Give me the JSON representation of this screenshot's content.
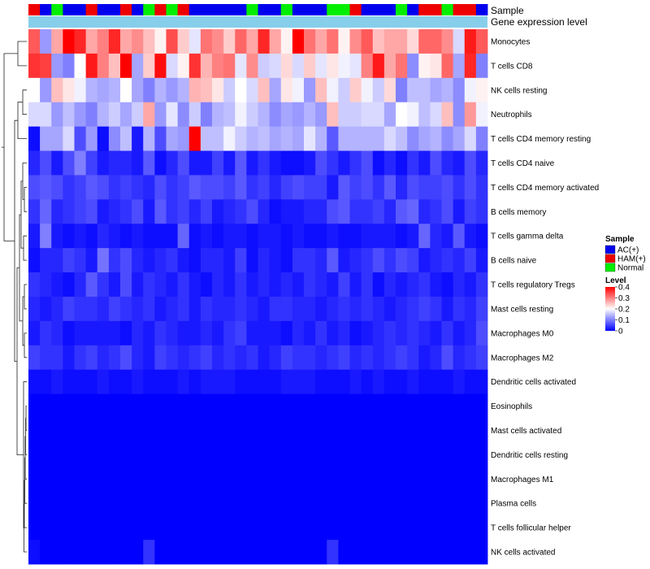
{
  "chart_data": {
    "type": "heatmap",
    "title": "",
    "xlabel": "",
    "ylabel": "",
    "annotation_tracks": [
      "Sample",
      "Gene expression level"
    ],
    "samples": [
      "HAM(+)",
      "AC(+)",
      "Normal",
      "AC(+)",
      "AC(+)",
      "HAM(+)",
      "AC(+)",
      "AC(+)",
      "HAM(+)",
      "AC(+)",
      "Normal",
      "HAM(+)",
      "Normal",
      "HAM(+)",
      "AC(+)",
      "AC(+)",
      "AC(+)",
      "AC(+)",
      "AC(+)",
      "Normal",
      "AC(+)",
      "AC(+)",
      "Normal",
      "AC(+)",
      "AC(+)",
      "AC(+)",
      "Normal",
      "Normal",
      "HAM(+)",
      "AC(+)",
      "AC(+)",
      "AC(+)",
      "Normal",
      "AC(+)",
      "HAM(+)",
      "HAM(+)",
      "Normal",
      "HAM(+)",
      "HAM(+)",
      "AC(+)"
    ],
    "rows": [
      "Monocytes",
      "T cells CD8",
      "NK cells resting",
      "Neutrophils",
      "T cells CD4 memory resting",
      "T cells CD4 naive",
      "T cells CD4 memory activated",
      "B cells memory",
      "T cells gamma delta",
      "B cells naive",
      "T cells regulatory  Tregs",
      "Mast cells resting",
      "Macrophages M0",
      "Macrophages M2",
      "Dendritic cells activated",
      "Eosinophils",
      "Mast cells activated",
      "Dendritic cells resting",
      "Macrophages M1",
      "Plasma cells",
      "T cells follicular helper",
      "NK cells activated"
    ],
    "values": [
      [
        0.33,
        0.12,
        0.27,
        0.4,
        0.37,
        0.27,
        0.3,
        0.37,
        0.27,
        0.29,
        0.25,
        0.21,
        0.34,
        0.24,
        0.18,
        0.31,
        0.29,
        0.24,
        0.32,
        0.27,
        0.37,
        0.27,
        0.21,
        0.4,
        0.31,
        0.27,
        0.31,
        0.21,
        0.29,
        0.33,
        0.25,
        0.27,
        0.27,
        0.23,
        0.32,
        0.32,
        0.29,
        0.17,
        0.38,
        0.33
      ],
      [
        0.36,
        0.35,
        0.12,
        0.1,
        0.2,
        0.38,
        0.3,
        0.25,
        0.4,
        0.13,
        0.24,
        0.39,
        0.17,
        0.21,
        0.36,
        0.26,
        0.3,
        0.31,
        0.18,
        0.29,
        0.16,
        0.17,
        0.23,
        0.17,
        0.24,
        0.18,
        0.22,
        0.19,
        0.18,
        0.3,
        0.38,
        0.27,
        0.31,
        0.11,
        0.21,
        0.22,
        0.32,
        0.13,
        0.37,
        0.1
      ],
      [
        0.2,
        0.12,
        0.25,
        0.22,
        0.19,
        0.14,
        0.13,
        0.14,
        0.2,
        0.13,
        0.1,
        0.14,
        0.12,
        0.14,
        0.26,
        0.25,
        0.22,
        0.16,
        0.2,
        0.17,
        0.25,
        0.13,
        0.22,
        0.19,
        0.12,
        0.25,
        0.19,
        0.16,
        0.24,
        0.19,
        0.16,
        0.23,
        0.1,
        0.15,
        0.15,
        0.13,
        0.14,
        0.11,
        0.19,
        0.21
      ],
      [
        0.17,
        0.17,
        0.12,
        0.15,
        0.12,
        0.1,
        0.14,
        0.16,
        0.13,
        0.16,
        0.27,
        0.12,
        0.18,
        0.11,
        0.16,
        0.1,
        0.14,
        0.15,
        0.19,
        0.16,
        0.14,
        0.11,
        0.13,
        0.12,
        0.14,
        0.12,
        0.25,
        0.16,
        0.16,
        0.17,
        0.17,
        0.13,
        0.2,
        0.19,
        0.15,
        0.17,
        0.25,
        0.11,
        0.28,
        0.19
      ],
      [
        0.01,
        0.13,
        0.13,
        0.17,
        0.06,
        0.12,
        0.01,
        0.11,
        0.15,
        0.02,
        0.14,
        0.06,
        0.13,
        0.12,
        0.4,
        0.15,
        0.15,
        0.19,
        0.16,
        0.14,
        0.15,
        0.13,
        0.14,
        0.13,
        0.18,
        0.14,
        0.07,
        0.14,
        0.14,
        0.14,
        0.14,
        0.17,
        0.15,
        0.11,
        0.13,
        0.14,
        0.11,
        0.13,
        0.17,
        0.1
      ],
      [
        0.03,
        0.06,
        0.02,
        0.06,
        0.1,
        0.05,
        0.02,
        0.03,
        0.03,
        0.02,
        0.07,
        0.01,
        0.03,
        0.06,
        0.02,
        0.02,
        0.05,
        0.02,
        0.07,
        0.02,
        0.04,
        0.02,
        0.01,
        0.01,
        0.02,
        0.06,
        0.04,
        0.02,
        0.04,
        0.06,
        0.01,
        0.03,
        0.01,
        0.04,
        0.02,
        0.06,
        0.03,
        0.02,
        0.06,
        0.03
      ],
      [
        0.06,
        0.07,
        0.06,
        0.04,
        0.05,
        0.07,
        0.06,
        0.04,
        0.05,
        0.04,
        0.03,
        0.06,
        0.04,
        0.05,
        0.07,
        0.06,
        0.06,
        0.05,
        0.07,
        0.04,
        0.05,
        0.03,
        0.05,
        0.06,
        0.05,
        0.05,
        0.02,
        0.07,
        0.05,
        0.06,
        0.04,
        0.07,
        0.03,
        0.06,
        0.05,
        0.05,
        0.06,
        0.04,
        0.06,
        0.04
      ],
      [
        0.04,
        0.08,
        0.03,
        0.04,
        0.05,
        0.06,
        0.02,
        0.03,
        0.04,
        0.06,
        0.02,
        0.07,
        0.04,
        0.05,
        0.03,
        0.05,
        0.02,
        0.03,
        0.04,
        0.06,
        0.03,
        0.01,
        0.02,
        0.02,
        0.03,
        0.03,
        0.06,
        0.07,
        0.04,
        0.04,
        0.05,
        0.03,
        0.07,
        0.08,
        0.03,
        0.04,
        0.06,
        0.02,
        0.05,
        0.04
      ],
      [
        0.02,
        0.1,
        0.02,
        0.01,
        0.02,
        0.01,
        0.03,
        0.02,
        0.01,
        0.02,
        0.01,
        0.01,
        0.01,
        0.08,
        0.01,
        0.02,
        0.01,
        0.02,
        0.02,
        0.01,
        0.02,
        0.02,
        0.01,
        0.02,
        0.01,
        0.01,
        0.02,
        0.01,
        0.01,
        0.02,
        0.02,
        0.02,
        0.01,
        0.02,
        0.08,
        0.03,
        0.02,
        0.07,
        0.02,
        0.01
      ],
      [
        0.01,
        0.03,
        0.03,
        0.05,
        0.04,
        0.02,
        0.09,
        0.04,
        0.06,
        0.03,
        0.02,
        0.03,
        0.04,
        0.02,
        0.01,
        0.03,
        0.03,
        0.02,
        0.05,
        0.01,
        0.03,
        0.02,
        0.01,
        0.04,
        0.04,
        0.03,
        0.07,
        0.02,
        0.03,
        0.04,
        0.06,
        0.04,
        0.06,
        0.05,
        0.02,
        0.03,
        0.04,
        0.03,
        0.05,
        0.02
      ],
      [
        0.04,
        0.03,
        0.02,
        0.01,
        0.03,
        0.07,
        0.04,
        0.02,
        0.06,
        0.02,
        0.04,
        0.03,
        0.02,
        0.04,
        0.02,
        0.01,
        0.03,
        0.02,
        0.04,
        0.02,
        0.03,
        0.02,
        0.03,
        0.02,
        0.04,
        0.03,
        0.02,
        0.05,
        0.02,
        0.04,
        0.01,
        0.03,
        0.02,
        0.03,
        0.04,
        0.02,
        0.01,
        0.03,
        0.02,
        0.04
      ],
      [
        0.03,
        0.02,
        0.03,
        0.05,
        0.04,
        0.04,
        0.03,
        0.05,
        0.04,
        0.03,
        0.04,
        0.02,
        0.03,
        0.04,
        0.02,
        0.04,
        0.03,
        0.03,
        0.04,
        0.03,
        0.02,
        0.04,
        0.04,
        0.03,
        0.03,
        0.02,
        0.03,
        0.04,
        0.03,
        0.04,
        0.03,
        0.02,
        0.03,
        0.04,
        0.05,
        0.04,
        0.02,
        0.04,
        0.03,
        0.05
      ],
      [
        0.02,
        0.04,
        0.03,
        0.01,
        0.02,
        0.02,
        0.02,
        0.02,
        0.01,
        0.03,
        0.02,
        0.04,
        0.03,
        0.02,
        0.02,
        0.03,
        0.02,
        0.04,
        0.05,
        0.02,
        0.02,
        0.02,
        0.01,
        0.03,
        0.02,
        0.04,
        0.02,
        0.03,
        0.01,
        0.02,
        0.03,
        0.04,
        0.03,
        0.04,
        0.03,
        0.02,
        0.04,
        0.02,
        0.03,
        0.06
      ],
      [
        0.05,
        0.04,
        0.04,
        0.02,
        0.04,
        0.05,
        0.03,
        0.04,
        0.06,
        0.03,
        0.02,
        0.05,
        0.04,
        0.03,
        0.04,
        0.05,
        0.03,
        0.04,
        0.03,
        0.04,
        0.02,
        0.03,
        0.05,
        0.04,
        0.04,
        0.03,
        0.04,
        0.05,
        0.03,
        0.04,
        0.03,
        0.04,
        0.05,
        0.04,
        0.02,
        0.03,
        0.06,
        0.03,
        0.04,
        0.05
      ],
      [
        0.01,
        0.01,
        0.02,
        0.01,
        0.01,
        0.01,
        0.02,
        0.01,
        0.01,
        0.02,
        0.01,
        0.01,
        0.01,
        0.02,
        0.01,
        0.02,
        0.02,
        0.02,
        0.01,
        0.01,
        0.01,
        0.01,
        0.02,
        0.02,
        0.02,
        0.01,
        0.01,
        0.01,
        0.02,
        0.01,
        0.02,
        0.01,
        0.01,
        0.02,
        0.01,
        0.01,
        0.01,
        0.02,
        0.01,
        0.01
      ],
      [
        0,
        0,
        0,
        0,
        0,
        0,
        0,
        0,
        0,
        0,
        0,
        0,
        0,
        0,
        0,
        0,
        0,
        0,
        0,
        0,
        0,
        0,
        0,
        0,
        0,
        0,
        0,
        0,
        0,
        0,
        0,
        0,
        0,
        0,
        0,
        0,
        0,
        0,
        0,
        0
      ],
      [
        0,
        0,
        0,
        0,
        0,
        0,
        0,
        0,
        0,
        0,
        0,
        0,
        0,
        0,
        0,
        0,
        0,
        0,
        0,
        0,
        0,
        0,
        0,
        0,
        0,
        0,
        0,
        0,
        0,
        0,
        0,
        0,
        0,
        0,
        0,
        0,
        0,
        0,
        0,
        0
      ],
      [
        0,
        0,
        0,
        0,
        0,
        0,
        0,
        0,
        0,
        0,
        0,
        0,
        0,
        0,
        0,
        0,
        0,
        0,
        0,
        0,
        0,
        0,
        0,
        0,
        0,
        0,
        0,
        0,
        0,
        0,
        0,
        0,
        0,
        0,
        0,
        0,
        0,
        0,
        0,
        0
      ],
      [
        0,
        0,
        0,
        0,
        0,
        0,
        0,
        0,
        0,
        0,
        0,
        0,
        0,
        0,
        0,
        0,
        0,
        0,
        0,
        0,
        0,
        0,
        0,
        0,
        0,
        0,
        0,
        0,
        0,
        0,
        0,
        0,
        0,
        0,
        0,
        0,
        0,
        0,
        0,
        0
      ],
      [
        0,
        0,
        0,
        0,
        0,
        0,
        0,
        0,
        0,
        0,
        0,
        0,
        0,
        0,
        0,
        0,
        0,
        0,
        0,
        0,
        0,
        0,
        0,
        0,
        0,
        0,
        0,
        0,
        0,
        0,
        0,
        0,
        0,
        0,
        0,
        0,
        0,
        0,
        0,
        0
      ],
      [
        0,
        0,
        0,
        0,
        0,
        0,
        0,
        0,
        0,
        0,
        0,
        0,
        0,
        0,
        0,
        0,
        0,
        0,
        0,
        0,
        0,
        0,
        0,
        0,
        0,
        0,
        0,
        0,
        0,
        0,
        0,
        0,
        0,
        0,
        0,
        0,
        0,
        0,
        0,
        0
      ],
      [
        0.01,
        0,
        0,
        0,
        0,
        0,
        0,
        0,
        0,
        0,
        0.04,
        0,
        0,
        0,
        0,
        0,
        0,
        0,
        0,
        0,
        0,
        0,
        0,
        0,
        0,
        0,
        0.04,
        0,
        0,
        0,
        0,
        0,
        0,
        0,
        0,
        0,
        0,
        0,
        0,
        0
      ]
    ],
    "sample_legend": {
      "title": "Sample",
      "entries": [
        {
          "label": "AC(+)",
          "color": "#0000ee"
        },
        {
          "label": "HAM(+)",
          "color": "#ee0000"
        },
        {
          "label": "Normal",
          "color": "#00ee00"
        }
      ]
    },
    "level_legend": {
      "title": "Level",
      "ticks": [
        "0.4",
        "0.3",
        "0.2",
        "0.1",
        "0"
      ],
      "range": [
        0,
        0.4
      ],
      "colors": {
        "low": "#0000ff",
        "mid": "#ffffff",
        "high": "#ff0000"
      }
    },
    "expression_track_color": "#87ceeb",
    "legend_position": "right"
  }
}
